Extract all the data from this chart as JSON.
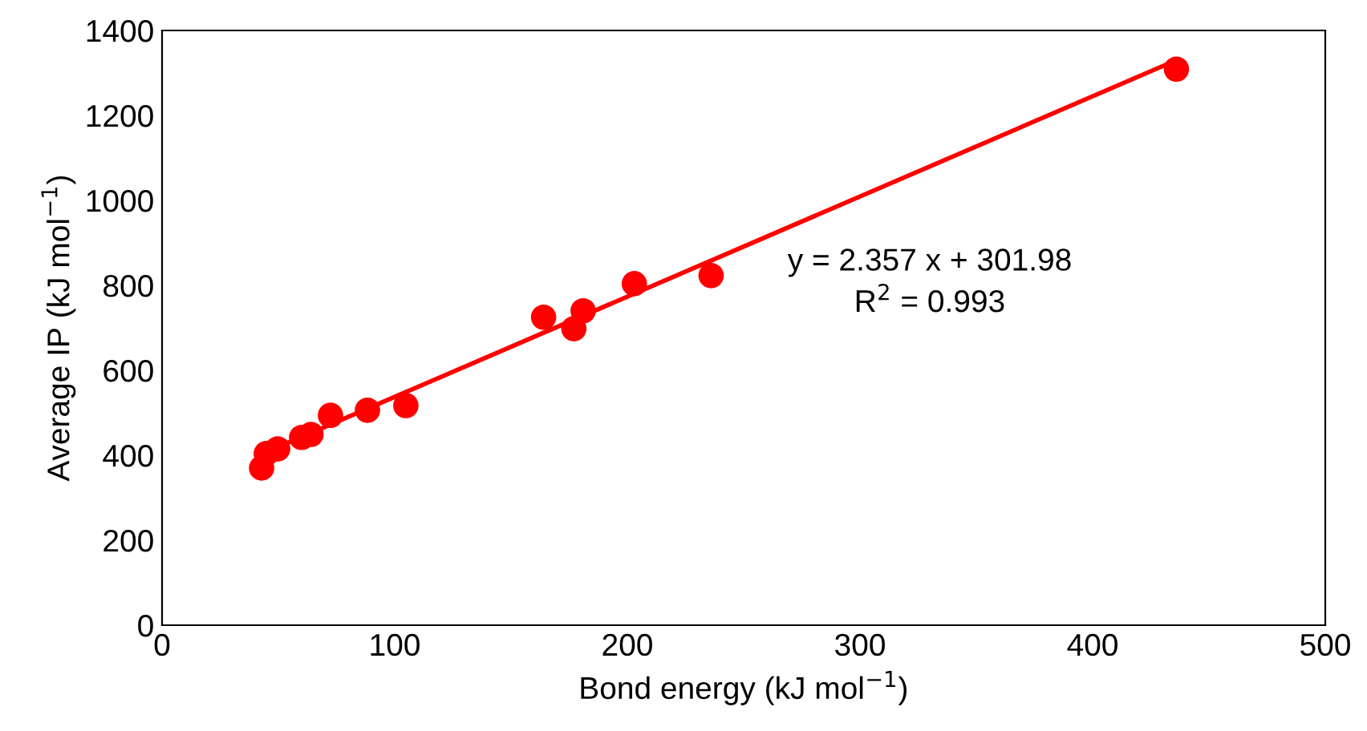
{
  "chart_data": {
    "type": "scatter",
    "xlabel": "Bond energy (kJ mol$^{−1}$)",
    "ylabel": "Average IP (kJ mol$^{−1}$)",
    "xlim": [
      0,
      500
    ],
    "xticks": [
      0,
      100,
      200,
      300,
      400,
      500
    ],
    "ylim": [
      0,
      1400
    ],
    "yticks": [
      0,
      200,
      400,
      600,
      800,
      1000,
      1200,
      1400
    ],
    "grid": false,
    "series": [
      {
        "marker": "circle",
        "color": "#ff0000",
        "x": [
          42.8,
          44.8,
          49.7,
          60,
          64,
          72.4,
          88.3,
          104.8,
          164,
          177,
          181,
          203,
          236,
          436
        ],
        "values": [
          370,
          404,
          415,
          442,
          449,
          494,
          506,
          517,
          725,
          698,
          740,
          804,
          823,
          1309
        ]
      },
      {
        "type": "line",
        "marker": "none",
        "color": "#ff0000",
        "x": [
          43,
          436
        ],
        "values": [
          403,
          1330
        ]
      }
    ],
    "annotations": [
      "y = 2.357 x + 301.98",
      "R$^{2}$ = 0.993"
    ]
  }
}
